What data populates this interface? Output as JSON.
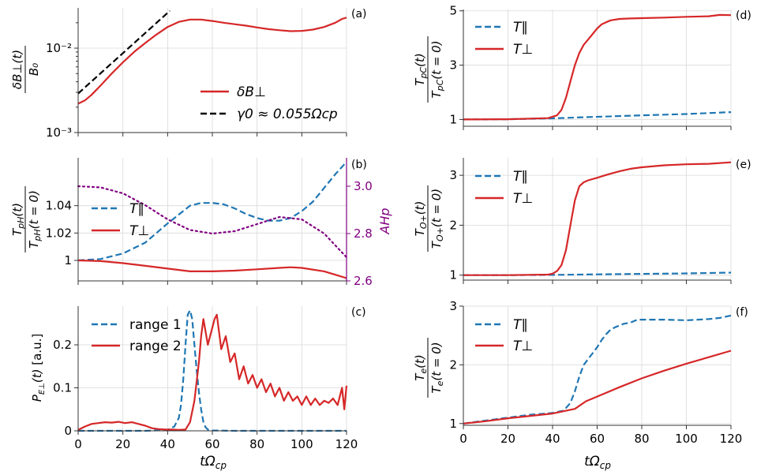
{
  "colors": {
    "blue": "#1f77b4",
    "red": "#d62728",
    "black": "#000000",
    "purple": "#800080"
  },
  "xlabel": "tΩcp",
  "xticks": [
    0,
    20,
    40,
    60,
    80,
    100,
    120
  ],
  "chart_data": [
    {
      "id": "a",
      "panel_label": "(a)",
      "type": "line",
      "yscale": "log",
      "ylabel": "δB⊥(t) / B0",
      "xlim": [
        0,
        120
      ],
      "ylim": [
        0.001,
        0.03
      ],
      "yticks": [
        {
          "v": 0.001,
          "label": "10⁻³"
        },
        {
          "v": 0.01,
          "label": "10⁻²"
        }
      ],
      "legend": {
        "position": "lower-right"
      },
      "series": [
        {
          "name": "δB⊥",
          "style": "solid",
          "color": "red",
          "x": [
            0,
            3,
            6,
            10,
            15,
            20,
            25,
            30,
            35,
            40,
            45,
            50,
            55,
            60,
            65,
            70,
            75,
            80,
            85,
            90,
            95,
            100,
            105,
            110,
            115,
            118,
            120
          ],
          "y": [
            0.0022,
            0.0024,
            0.0028,
            0.0036,
            0.005,
            0.0068,
            0.009,
            0.0115,
            0.0145,
            0.0178,
            0.0205,
            0.0218,
            0.0218,
            0.021,
            0.02,
            0.0192,
            0.0185,
            0.0176,
            0.0168,
            0.0163,
            0.0159,
            0.016,
            0.0166,
            0.0178,
            0.02,
            0.0222,
            0.023
          ]
        },
        {
          "name": "γ0 ≈ 0.055Ωcp",
          "style": "dashed",
          "color": "black",
          "x": [
            0,
            41
          ],
          "y": [
            0.0029,
            0.0277
          ]
        }
      ]
    },
    {
      "id": "b",
      "panel_label": "(b)",
      "type": "line",
      "ylabel": "TpH(t) / TpH(t=0)",
      "y2label": "AHp",
      "xlim": [
        0,
        120
      ],
      "ylim": [
        0.985,
        1.075
      ],
      "yticks": [
        {
          "v": 1.0,
          "label": "1"
        },
        {
          "v": 1.02,
          "label": "1.02"
        },
        {
          "v": 1.04,
          "label": "1.04"
        }
      ],
      "y2lim": [
        2.6,
        3.12
      ],
      "y2ticks": [
        {
          "v": 2.6,
          "label": "2.6"
        },
        {
          "v": 2.8,
          "label": "2.8"
        },
        {
          "v": 3.0,
          "label": "3.0"
        }
      ],
      "legend": {
        "position": "center-left"
      },
      "series": [
        {
          "name": "T∥",
          "style": "dashed",
          "color": "blue",
          "x": [
            0,
            10,
            20,
            30,
            40,
            50,
            55,
            60,
            65,
            70,
            75,
            80,
            85,
            90,
            95,
            100,
            105,
            110,
            115,
            120
          ],
          "y": [
            1.0,
            1.001,
            1.005,
            1.013,
            1.027,
            1.04,
            1.042,
            1.042,
            1.041,
            1.038,
            1.034,
            1.031,
            1.029,
            1.029,
            1.031,
            1.036,
            1.043,
            1.053,
            1.063,
            1.072
          ]
        },
        {
          "name": "T⊥",
          "style": "solid",
          "color": "red",
          "x": [
            0,
            10,
            20,
            30,
            40,
            50,
            60,
            70,
            80,
            90,
            95,
            100,
            110,
            115,
            120
          ],
          "y": [
            1.0,
            0.9995,
            0.998,
            0.996,
            0.994,
            0.992,
            0.992,
            0.9925,
            0.9935,
            0.9945,
            0.995,
            0.9945,
            0.992,
            0.9895,
            0.987
          ]
        },
        {
          "name": "AHp",
          "style": "dotted",
          "color": "purple",
          "axis": "y2",
          "x": [
            0,
            10,
            20,
            30,
            40,
            50,
            60,
            70,
            80,
            90,
            100,
            110,
            115,
            120
          ],
          "y": [
            3.0,
            2.995,
            2.97,
            2.92,
            2.86,
            2.815,
            2.8,
            2.81,
            2.84,
            2.87,
            2.86,
            2.8,
            2.75,
            2.7
          ]
        }
      ]
    },
    {
      "id": "c",
      "panel_label": "(c)",
      "type": "line",
      "ylabel": "PE⊥(t) [a.u.]",
      "xlim": [
        0,
        120
      ],
      "ylim": [
        0,
        0.29
      ],
      "yticks": [
        {
          "v": 0,
          "label": "0"
        },
        {
          "v": 0.1,
          "label": "0.1"
        },
        {
          "v": 0.2,
          "label": "0.2"
        }
      ],
      "legend": {
        "position": "top-left"
      },
      "series": [
        {
          "name": "range 1",
          "style": "dashed",
          "color": "blue",
          "x": [
            0,
            10,
            20,
            30,
            40,
            43,
            45,
            46,
            47,
            48,
            49,
            50,
            51,
            52,
            53,
            54,
            55,
            56,
            57,
            58,
            60,
            70,
            80,
            100,
            120
          ],
          "y": [
            0,
            0,
            0,
            0,
            0.002,
            0.01,
            0.03,
            0.06,
            0.12,
            0.2,
            0.27,
            0.28,
            0.26,
            0.2,
            0.14,
            0.09,
            0.05,
            0.02,
            0.008,
            0.003,
            0.001,
            0,
            0,
            0,
            0
          ]
        },
        {
          "name": "range 2",
          "style": "solid",
          "color": "red",
          "x": [
            0,
            3,
            6,
            9,
            12,
            15,
            18,
            21,
            24,
            27,
            30,
            33,
            36,
            39,
            42,
            45,
            48,
            50,
            52,
            54,
            55,
            56,
            58,
            60,
            61,
            62,
            64,
            66,
            68,
            70,
            72,
            74,
            76,
            78,
            80,
            82,
            84,
            86,
            88,
            90,
            92,
            94,
            96,
            98,
            100,
            102,
            104,
            106,
            108,
            110,
            112,
            114,
            116,
            118,
            119,
            120
          ],
          "y": [
            0.002,
            0.01,
            0.016,
            0.018,
            0.02,
            0.019,
            0.021,
            0.018,
            0.02,
            0.016,
            0.012,
            0.006,
            0.004,
            0.003,
            0.003,
            0.002,
            0.003,
            0.02,
            0.07,
            0.16,
            0.22,
            0.26,
            0.2,
            0.24,
            0.26,
            0.27,
            0.19,
            0.22,
            0.16,
            0.18,
            0.12,
            0.15,
            0.11,
            0.13,
            0.1,
            0.12,
            0.09,
            0.11,
            0.08,
            0.1,
            0.07,
            0.09,
            0.07,
            0.08,
            0.06,
            0.08,
            0.06,
            0.075,
            0.06,
            0.07,
            0.065,
            0.075,
            0.06,
            0.1,
            0.05,
            0.105
          ]
        }
      ]
    },
    {
      "id": "d",
      "panel_label": "(d)",
      "type": "line",
      "ylabel": "TpC(t) / TpC(t=0)",
      "xlim": [
        0,
        120
      ],
      "ylim": [
        0.75,
        5.05
      ],
      "yticks": [
        {
          "v": 1,
          "label": "1"
        },
        {
          "v": 3,
          "label": "3"
        },
        {
          "v": 5,
          "label": "5"
        }
      ],
      "legend": {
        "position": "top-left"
      },
      "series": [
        {
          "name": "T∥",
          "style": "dashed",
          "color": "blue",
          "x": [
            0,
            20,
            40,
            60,
            80,
            100,
            120
          ],
          "y": [
            1.0,
            1.01,
            1.04,
            1.1,
            1.15,
            1.2,
            1.27
          ]
        },
        {
          "name": "T⊥",
          "style": "solid",
          "color": "red",
          "x": [
            0,
            20,
            38,
            42,
            44,
            46,
            48,
            50,
            52,
            54,
            56,
            58,
            60,
            62,
            64,
            66,
            70,
            75,
            80,
            90,
            100,
            110,
            115,
            120
          ],
          "y": [
            1.0,
            1.01,
            1.05,
            1.15,
            1.35,
            1.8,
            2.4,
            3.0,
            3.45,
            3.75,
            3.95,
            4.15,
            4.35,
            4.5,
            4.58,
            4.65,
            4.7,
            4.72,
            4.73,
            4.75,
            4.78,
            4.8,
            4.85,
            4.84
          ]
        }
      ]
    },
    {
      "id": "e",
      "panel_label": "(e)",
      "type": "line",
      "ylabel": "TO+(t) / TO+(t=0)",
      "xlim": [
        0,
        120
      ],
      "ylim": [
        0.9,
        3.35
      ],
      "yticks": [
        {
          "v": 1,
          "label": "1"
        },
        {
          "v": 2,
          "label": "2"
        },
        {
          "v": 3,
          "label": "3"
        }
      ],
      "legend": {
        "position": "top-left"
      },
      "series": [
        {
          "name": "T∥",
          "style": "dashed",
          "color": "blue",
          "x": [
            0,
            20,
            40,
            60,
            80,
            100,
            120
          ],
          "y": [
            1.0,
            1.0,
            1.005,
            1.015,
            1.025,
            1.035,
            1.05
          ]
        },
        {
          "name": "T⊥",
          "style": "solid",
          "color": "red",
          "x": [
            0,
            20,
            38,
            40,
            42,
            44,
            46,
            48,
            50,
            52,
            54,
            56,
            60,
            65,
            70,
            75,
            80,
            90,
            100,
            110,
            120
          ],
          "y": [
            1.0,
            1.0,
            1.01,
            1.03,
            1.08,
            1.2,
            1.5,
            2.0,
            2.5,
            2.78,
            2.86,
            2.9,
            2.95,
            3.02,
            3.08,
            3.13,
            3.16,
            3.2,
            3.22,
            3.23,
            3.26
          ]
        }
      ]
    },
    {
      "id": "f",
      "panel_label": "(f)",
      "type": "line",
      "ylabel": "Te(t) / Te(t=0)",
      "xlim": [
        0,
        120
      ],
      "ylim": [
        0.97,
        3.0
      ],
      "yticks": [
        {
          "v": 1,
          "label": "1"
        },
        {
          "v": 2,
          "label": "2"
        },
        {
          "v": 3,
          "label": "3"
        }
      ],
      "legend": {
        "position": "top-left"
      },
      "series": [
        {
          "name": "T∥",
          "style": "dashed",
          "color": "blue",
          "x": [
            0,
            10,
            20,
            30,
            40,
            45,
            48,
            50,
            52,
            54,
            56,
            58,
            60,
            62,
            64,
            66,
            68,
            70,
            72,
            75,
            78,
            80,
            90,
            100,
            110,
            115,
            120
          ],
          "y": [
            1.0,
            1.05,
            1.1,
            1.15,
            1.18,
            1.22,
            1.35,
            1.55,
            1.8,
            2.0,
            2.1,
            2.2,
            2.3,
            2.42,
            2.52,
            2.6,
            2.64,
            2.67,
            2.7,
            2.72,
            2.77,
            2.77,
            2.77,
            2.76,
            2.78,
            2.8,
            2.84
          ]
        },
        {
          "name": "T⊥",
          "style": "solid",
          "color": "red",
          "x": [
            0,
            10,
            20,
            30,
            40,
            50,
            55,
            60,
            70,
            80,
            90,
            100,
            110,
            120
          ],
          "y": [
            1.0,
            1.04,
            1.09,
            1.13,
            1.17,
            1.25,
            1.38,
            1.46,
            1.62,
            1.77,
            1.9,
            2.02,
            2.13,
            2.24
          ]
        }
      ]
    }
  ]
}
